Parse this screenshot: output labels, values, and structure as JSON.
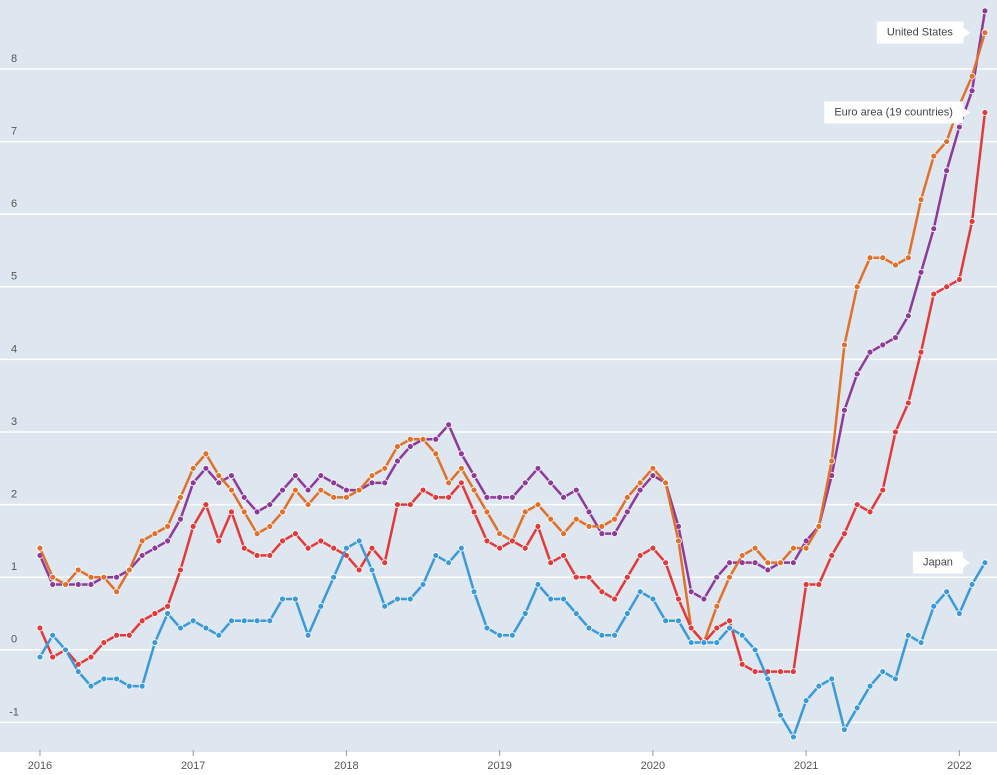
{
  "chart_data": {
    "type": "line",
    "x": [
      2016,
      2016.083,
      2016.167,
      2016.25,
      2016.333,
      2016.417,
      2016.5,
      2016.583,
      2016.667,
      2016.75,
      2016.833,
      2016.917,
      2017,
      2017.083,
      2017.167,
      2017.25,
      2017.333,
      2017.417,
      2017.5,
      2017.583,
      2017.667,
      2017.75,
      2017.833,
      2017.917,
      2018,
      2018.083,
      2018.167,
      2018.25,
      2018.333,
      2018.417,
      2018.5,
      2018.583,
      2018.667,
      2018.75,
      2018.833,
      2018.917,
      2019,
      2019.083,
      2019.167,
      2019.25,
      2019.333,
      2019.417,
      2019.5,
      2019.583,
      2019.667,
      2019.75,
      2019.833,
      2019.917,
      2020,
      2020.083,
      2020.167,
      2020.25,
      2020.333,
      2020.417,
      2020.5,
      2020.583,
      2020.667,
      2020.75,
      2020.833,
      2020.917,
      2021,
      2021.083,
      2021.167,
      2021.25,
      2021.333,
      2021.417,
      2021.5,
      2021.583,
      2021.667,
      2021.75,
      2021.833,
      2021.917,
      2022,
      2022.083,
      2022.167
    ],
    "series": [
      {
        "color": "#8e3a9a",
        "values": [
          1.3,
          0.9,
          0.9,
          0.9,
          0.9,
          1.0,
          1.0,
          1.1,
          1.3,
          1.4,
          1.5,
          1.8,
          2.3,
          2.5,
          2.3,
          2.4,
          2.1,
          1.9,
          2.0,
          2.2,
          2.4,
          2.2,
          2.4,
          2.3,
          2.2,
          2.2,
          2.3,
          2.3,
          2.6,
          2.8,
          2.9,
          2.9,
          3.1,
          2.7,
          2.4,
          2.1,
          2.1,
          2.1,
          2.3,
          2.5,
          2.3,
          2.1,
          2.2,
          1.9,
          1.6,
          1.6,
          1.9,
          2.2,
          2.4,
          2.3,
          1.7,
          0.8,
          0.7,
          1.0,
          1.2,
          1.2,
          1.2,
          1.1,
          1.2,
          1.2,
          1.5,
          1.7,
          2.4,
          3.3,
          3.8,
          4.1,
          4.2,
          4.3,
          4.6,
          5.2,
          5.8,
          6.6,
          7.2,
          7.7,
          8.8
        ]
      },
      {
        "name": "United States",
        "color": "#e0702a",
        "values": [
          1.4,
          1.0,
          0.9,
          1.1,
          1.0,
          1.0,
          0.8,
          1.1,
          1.5,
          1.6,
          1.7,
          2.1,
          2.5,
          2.7,
          2.4,
          2.2,
          1.9,
          1.6,
          1.7,
          1.9,
          2.2,
          2.0,
          2.2,
          2.1,
          2.1,
          2.2,
          2.4,
          2.5,
          2.8,
          2.9,
          2.9,
          2.7,
          2.3,
          2.5,
          2.2,
          1.9,
          1.6,
          1.5,
          1.9,
          2.0,
          1.8,
          1.6,
          1.8,
          1.7,
          1.7,
          1.8,
          2.1,
          2.3,
          2.5,
          2.3,
          1.5,
          0.3,
          0.1,
          0.6,
          1.0,
          1.3,
          1.4,
          1.2,
          1.2,
          1.4,
          1.4,
          1.7,
          2.6,
          4.2,
          5.0,
          5.4,
          5.4,
          5.3,
          5.4,
          6.2,
          6.8,
          7.0,
          7.5,
          7.9,
          8.5
        ]
      },
      {
        "name": "Euro area (19 countries)",
        "color": "#e23a3a",
        "values": [
          0.3,
          -0.1,
          0.0,
          -0.2,
          -0.1,
          0.1,
          0.2,
          0.2,
          0.4,
          0.5,
          0.6,
          1.1,
          1.7,
          2.0,
          1.5,
          1.9,
          1.4,
          1.3,
          1.3,
          1.5,
          1.6,
          1.4,
          1.5,
          1.4,
          1.3,
          1.1,
          1.4,
          1.2,
          2.0,
          2.0,
          2.2,
          2.1,
          2.1,
          2.3,
          1.9,
          1.5,
          1.4,
          1.5,
          1.4,
          1.7,
          1.2,
          1.3,
          1.0,
          1.0,
          0.8,
          0.7,
          1.0,
          1.3,
          1.4,
          1.2,
          0.7,
          0.3,
          0.1,
          0.3,
          0.4,
          -0.2,
          -0.3,
          -0.3,
          -0.3,
          -0.3,
          0.9,
          0.9,
          1.3,
          1.6,
          2.0,
          1.9,
          2.2,
          3.0,
          3.4,
          4.1,
          4.9,
          5.0,
          5.1,
          5.9,
          7.4
        ]
      },
      {
        "name": "Japan",
        "color": "#3a9ad9",
        "values": [
          -0.1,
          0.2,
          0.0,
          -0.3,
          -0.5,
          -0.4,
          -0.4,
          -0.5,
          -0.5,
          0.1,
          0.5,
          0.3,
          0.4,
          0.3,
          0.2,
          0.4,
          0.4,
          0.4,
          0.4,
          0.7,
          0.7,
          0.2,
          0.6,
          1.0,
          1.4,
          1.5,
          1.1,
          0.6,
          0.7,
          0.7,
          0.9,
          1.3,
          1.2,
          1.4,
          0.8,
          0.3,
          0.2,
          0.2,
          0.5,
          0.9,
          0.7,
          0.7,
          0.5,
          0.3,
          0.2,
          0.2,
          0.5,
          0.8,
          0.7,
          0.4,
          0.4,
          0.1,
          0.1,
          0.1,
          0.3,
          0.2,
          0.0,
          -0.4,
          -0.9,
          -1.2,
          -0.7,
          -0.5,
          -0.4,
          -1.1,
          -0.8,
          -0.5,
          -0.3,
          -0.4,
          0.2,
          0.1,
          0.6,
          0.8,
          0.5,
          0.9,
          1.2
        ]
      }
    ],
    "xlim": [
      2015.935,
      2022.2
    ],
    "xticks": [
      2016,
      2017,
      2018,
      2019,
      2020,
      2021,
      2022
    ],
    "ylim": [
      -1.38,
      8.95
    ],
    "yticks": [
      -1,
      0,
      1,
      2,
      3,
      4,
      5,
      6,
      7,
      8
    ],
    "grid": true
  }
}
